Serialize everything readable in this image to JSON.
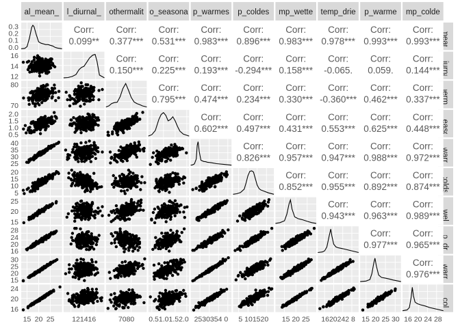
{
  "chart_data": {
    "type": "scatter-matrix",
    "title": "",
    "variables": [
      {
        "label": "al_mean_",
        "rlabel": "_mear",
        "xrange": [
          12.5,
          30
        ],
        "xticks": [
          15,
          20,
          25
        ],
        "ytick_labels": [
          "0.3",
          "0.2",
          "0.1",
          "0.0"
        ],
        "ytick_vals": [
          0.3,
          0.2,
          0.1,
          0.0
        ],
        "density_ylim": [
          0,
          0.35
        ],
        "peak": 0.34,
        "dens_profile": [
          [
            12.5,
            0
          ],
          [
            14,
            0.005
          ],
          [
            15,
            0.03
          ],
          [
            16,
            0.15
          ],
          [
            17,
            0.31
          ],
          [
            17.5,
            0.34
          ],
          [
            18,
            0.32
          ],
          [
            19,
            0.2
          ],
          [
            20,
            0.1
          ],
          [
            21,
            0.08
          ],
          [
            22,
            0.07
          ],
          [
            23,
            0.06
          ],
          [
            24,
            0.06
          ],
          [
            25,
            0.05
          ],
          [
            26,
            0.04
          ],
          [
            27,
            0.02
          ],
          [
            28,
            0.01
          ],
          [
            30,
            0
          ]
        ]
      },
      {
        "label": "l_diurnal_",
        "rlabel": "_diurna",
        "xrange": [
          10.8,
          17.4
        ],
        "xticks": [
          12,
          14,
          16
        ],
        "xtick_labels": [
          "12",
          "14",
          "16"
        ],
        "ytick_labels": [
          "16",
          "14",
          "12"
        ],
        "ytick_vals": [
          16,
          14,
          12
        ],
        "dens_profile": [
          [
            10.8,
            0
          ],
          [
            11.5,
            0.01
          ],
          [
            12.2,
            0.05
          ],
          [
            12.8,
            0.12
          ],
          [
            13.3,
            0.3
          ],
          [
            13.7,
            0.38
          ],
          [
            14.1,
            0.42
          ],
          [
            14.5,
            0.55
          ],
          [
            15,
            0.72
          ],
          [
            15.5,
            0.82
          ],
          [
            15.9,
            0.85
          ],
          [
            16.2,
            0.6
          ],
          [
            16.6,
            0.1
          ],
          [
            17.4,
            0
          ]
        ]
      },
      {
        "label": "othermalit",
        "rlabel": "_therma",
        "xrange": [
          62,
          91
        ],
        "xticks": [
          70,
          80
        ],
        "xtick_labels": [
          "70",
          "80"
        ],
        "ytick_labels": [
          "80",
          "70"
        ],
        "ytick_vals": [
          80,
          70
        ],
        "dens_profile": [
          [
            62,
            0
          ],
          [
            64,
            0.03
          ],
          [
            66,
            0.1
          ],
          [
            68,
            0.13
          ],
          [
            70,
            0.14
          ],
          [
            72,
            0.3
          ],
          [
            74,
            0.55
          ],
          [
            76,
            0.7
          ],
          [
            78,
            0.5
          ],
          [
            80,
            0.28
          ],
          [
            82,
            0.15
          ],
          [
            84,
            0.1
          ],
          [
            86,
            0.07
          ],
          [
            88,
            0.03
          ],
          [
            91,
            0
          ]
        ]
      },
      {
        "label": "o_seasona",
        "rlabel": "_seaso",
        "xrange": [
          0.35,
          2.1
        ],
        "xticks": [
          0.5,
          1.0,
          1.5,
          2.0
        ],
        "xtick_labels": [
          "0.51.01.52.0"
        ],
        "ytick_labels": [
          "2.0",
          "1.5",
          "1.0",
          "0.5"
        ],
        "ytick_vals": [
          2.0,
          1.5,
          1.0,
          0.5
        ],
        "dens_profile": [
          [
            0.35,
            0
          ],
          [
            0.5,
            0.05
          ],
          [
            0.65,
            0.2
          ],
          [
            0.8,
            0.6
          ],
          [
            0.9,
            0.78
          ],
          [
            1.0,
            0.85
          ],
          [
            1.1,
            0.75
          ],
          [
            1.2,
            0.55
          ],
          [
            1.3,
            0.6
          ],
          [
            1.4,
            0.7
          ],
          [
            1.5,
            0.55
          ],
          [
            1.6,
            0.35
          ],
          [
            1.7,
            0.18
          ],
          [
            1.85,
            0.07
          ],
          [
            2.1,
            0
          ]
        ]
      },
      {
        "label": "p_warmes",
        "rlabel": "_warr",
        "xrange": [
          20,
          42
        ],
        "xticks": [
          25,
          30,
          35,
          40
        ],
        "xtick_labels": [
          "2530354 0"
        ],
        "ytick_labels": [
          "40",
          "35",
          "30",
          "25"
        ],
        "ytick_vals": [
          40,
          35,
          30,
          25
        ],
        "dens_profile": [
          [
            20,
            0
          ],
          [
            21,
            0.01
          ],
          [
            22,
            0.05
          ],
          [
            23,
            0.25
          ],
          [
            23.5,
            0.8
          ],
          [
            24,
            0.95
          ],
          [
            24.6,
            0.55
          ],
          [
            25.5,
            0.2
          ],
          [
            27,
            0.15
          ],
          [
            28,
            0.14
          ],
          [
            29,
            0.12
          ],
          [
            31,
            0.1
          ],
          [
            34,
            0.06
          ],
          [
            38,
            0.03
          ],
          [
            42,
            0
          ]
        ]
      },
      {
        "label": "p_coldes",
        "rlabel": "_colds",
        "xrange": [
          2,
          24
        ],
        "xticks": [
          5,
          10,
          15,
          20
        ],
        "xtick_labels": [
          "5 101520"
        ],
        "ytick_labels": [
          "20",
          "15",
          "10",
          "5"
        ],
        "ytick_vals": [
          20,
          15,
          10,
          5
        ],
        "dens_profile": [
          [
            2,
            0
          ],
          [
            4,
            0.02
          ],
          [
            6,
            0.06
          ],
          [
            8,
            0.18
          ],
          [
            9,
            0.4
          ],
          [
            10,
            0.65
          ],
          [
            11,
            0.8
          ],
          [
            12,
            0.82
          ],
          [
            13,
            0.78
          ],
          [
            14,
            0.55
          ],
          [
            15,
            0.32
          ],
          [
            16,
            0.2
          ],
          [
            17,
            0.15
          ],
          [
            19,
            0.1
          ],
          [
            21,
            0.05
          ],
          [
            24,
            0
          ]
        ]
      },
      {
        "label": "mp_wette",
        "rlabel": "p_wel",
        "xrange": [
          11,
          29
        ],
        "xticks": [
          15,
          20,
          25
        ],
        "xtick_labels": [
          "15 20 25"
        ],
        "ytick_labels": [
          "25",
          "20",
          "15"
        ],
        "ytick_vals": [
          25,
          20,
          15
        ],
        "dens_profile": [
          [
            11,
            0
          ],
          [
            13,
            0.03
          ],
          [
            15,
            0.1
          ],
          [
            16,
            0.35
          ],
          [
            17,
            0.75
          ],
          [
            17.6,
            0.9
          ],
          [
            18.3,
            0.55
          ],
          [
            19.5,
            0.25
          ],
          [
            21,
            0.18
          ],
          [
            22,
            0.16
          ],
          [
            23,
            0.14
          ],
          [
            25,
            0.08
          ],
          [
            27,
            0.03
          ],
          [
            29,
            0
          ]
        ]
      },
      {
        "label": "temp_drie",
        "rlabel": "np_dr",
        "xrange": [
          13,
          31
        ],
        "xticks": [
          16,
          20,
          24,
          28
        ],
        "xtick_labels": [
          "1620242 8"
        ],
        "ytick_labels": [
          "28",
          "24",
          "20",
          "16"
        ],
        "ytick_vals": [
          28,
          24,
          20,
          16
        ],
        "dens_profile": [
          [
            13,
            0
          ],
          [
            15,
            0.02
          ],
          [
            16,
            0.06
          ],
          [
            17,
            0.2
          ],
          [
            18,
            0.6
          ],
          [
            18.7,
            0.85
          ],
          [
            19.2,
            0.6
          ],
          [
            20,
            0.3
          ],
          [
            21,
            0.2
          ],
          [
            22,
            0.17
          ],
          [
            24,
            0.14
          ],
          [
            26,
            0.1
          ],
          [
            28,
            0.06
          ],
          [
            31,
            0
          ]
        ]
      },
      {
        "label": "p_warme",
        "rlabel": "_warr",
        "xrange": [
          12,
          33
        ],
        "xticks": [
          15,
          20,
          25,
          30
        ],
        "xtick_labels": [
          "15 20 25 30"
        ],
        "ytick_labels": [
          "30",
          "25",
          "20",
          "15"
        ],
        "ytick_vals": [
          30,
          25,
          20,
          15
        ],
        "dens_profile": [
          [
            12,
            0
          ],
          [
            15,
            0.02
          ],
          [
            17,
            0.08
          ],
          [
            18,
            0.3
          ],
          [
            19,
            0.72
          ],
          [
            19.6,
            0.9
          ],
          [
            20.3,
            0.6
          ],
          [
            21.5,
            0.25
          ],
          [
            23,
            0.16
          ],
          [
            25,
            0.13
          ],
          [
            27,
            0.1
          ],
          [
            29,
            0.06
          ],
          [
            33,
            0
          ]
        ]
      },
      {
        "label": "mp_colde",
        "rlabel": "p_col",
        "xrange": [
          13,
          31
        ],
        "xticks": [
          16,
          20,
          24,
          28
        ],
        "xtick_labels": [
          "16 20 24 28"
        ],
        "ytick_labels": [
          "24",
          "20",
          "16"
        ],
        "ytick_vals": [
          24,
          20,
          16
        ],
        "dens_profile": [
          [
            13,
            0
          ],
          [
            15,
            0.02
          ],
          [
            16,
            0.08
          ],
          [
            16.8,
            0.35
          ],
          [
            17.3,
            0.6
          ],
          [
            17.8,
            0.38
          ],
          [
            18.5,
            0.22
          ],
          [
            19.5,
            0.18
          ],
          [
            21,
            0.15
          ],
          [
            23,
            0.12
          ],
          [
            25,
            0.08
          ],
          [
            28,
            0.04
          ],
          [
            31,
            0
          ]
        ]
      }
    ],
    "correlations": [
      [
        "",
        "0.099**",
        "0.377***",
        "0.531***",
        "0.983***",
        "0.896***",
        "0.983***",
        "0.978***",
        "0.993***",
        "0.993***"
      ],
      [
        "",
        "",
        "0.150***",
        "0.225***",
        "0.193***",
        "-0.294***",
        "0.158***",
        "-0.065.",
        "0.059.",
        "0.144***"
      ],
      [
        "",
        "",
        "",
        "0.795***",
        "0.474***",
        "0.234***",
        "0.330***",
        "-0.360***",
        "0.462***",
        "0.337***"
      ],
      [
        "",
        "",
        "",
        "",
        "0.602***",
        "0.497***",
        "0.431***",
        "0.553***",
        "0.625***",
        "0.448***"
      ],
      [
        "",
        "",
        "",
        "",
        "",
        "0.826***",
        "0.957***",
        "0.947***",
        "0.988***",
        "0.972***"
      ],
      [
        "",
        "",
        "",
        "",
        "",
        "",
        "0.852***",
        "0.955***",
        "0.892***",
        "0.874***"
      ],
      [
        "",
        "",
        "",
        "",
        "",
        "",
        "",
        "0.943***",
        "0.963***",
        "0.989***"
      ],
      [
        "",
        "",
        "",
        "",
        "",
        "",
        "",
        "",
        "0.977***",
        "0.965***"
      ],
      [
        "",
        "",
        "",
        "",
        "",
        "",
        "",
        "",
        "",
        "0.976***"
      ],
      [
        "",
        "",
        "",
        "",
        "",
        "",
        "",
        "",
        "",
        ""
      ]
    ],
    "corr_label": "Corr:",
    "point_color": "#000000",
    "panel_bg": "#ebebeb",
    "grid_color": "#ffffff",
    "strip_bg": "#d9d9d9",
    "n_points_per_panel": 180
  }
}
